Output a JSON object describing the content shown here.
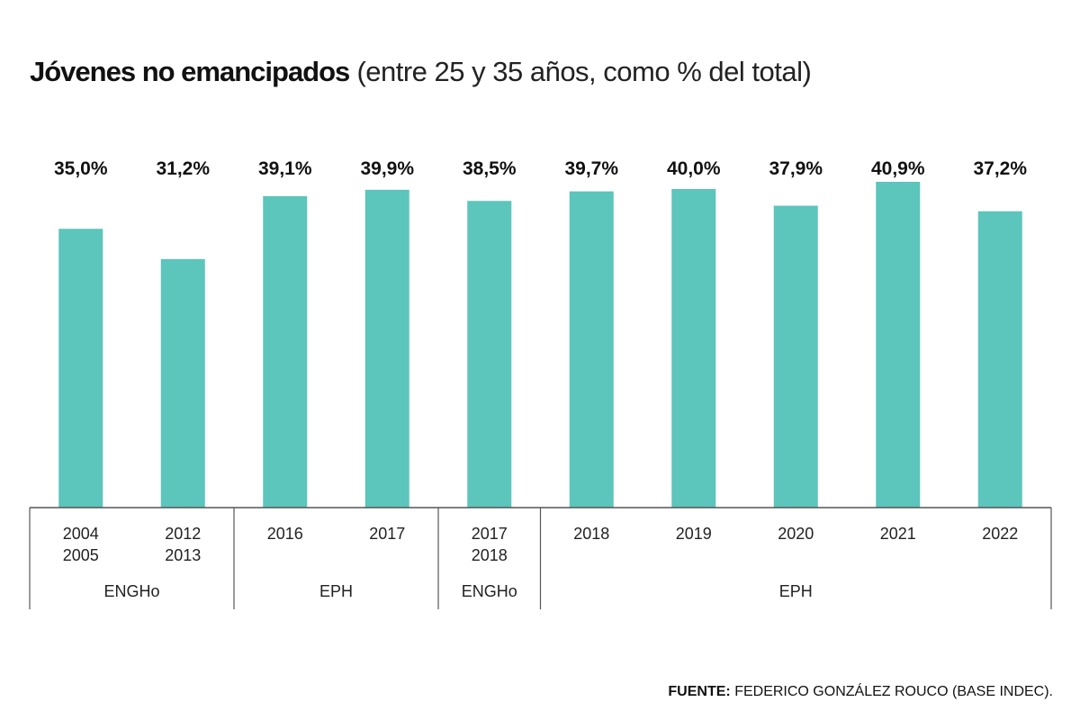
{
  "title": {
    "main": "Jóvenes no emancipados",
    "sub": "(entre 25 y 35 años, como % del total)"
  },
  "source": {
    "label": "FUENTE:",
    "text": "FEDERICO GONZÁLEZ ROUCO (BASE INDEC)."
  },
  "colors": {
    "bar": "#5cc5bc",
    "axis": "#555555"
  },
  "chart_data": {
    "type": "bar",
    "categories": [
      [
        "2004",
        "2005"
      ],
      [
        "2012",
        "2013"
      ],
      [
        "2016"
      ],
      [
        "2017"
      ],
      [
        "2017",
        "2018"
      ],
      [
        "2018"
      ],
      [
        "2019"
      ],
      [
        "2020"
      ],
      [
        "2021"
      ],
      [
        "2022"
      ]
    ],
    "values": [
      35.0,
      31.2,
      39.1,
      39.9,
      38.5,
      39.7,
      40.0,
      37.9,
      40.9,
      37.2
    ],
    "value_labels": [
      "35,0%",
      "31,2%",
      "39,1%",
      "39,9%",
      "38,5%",
      "39,7%",
      "40,0%",
      "37,9%",
      "40,9%",
      "37,2%"
    ],
    "groups": [
      {
        "label": "ENGHo",
        "start": 0,
        "end": 1
      },
      {
        "label": "EPH",
        "start": 2,
        "end": 3
      },
      {
        "label": "ENGHo",
        "start": 4,
        "end": 4
      },
      {
        "label": "EPH",
        "start": 5,
        "end": 9
      }
    ],
    "ylim": [
      0,
      40.9
    ],
    "grid": false,
    "legend": "none"
  }
}
